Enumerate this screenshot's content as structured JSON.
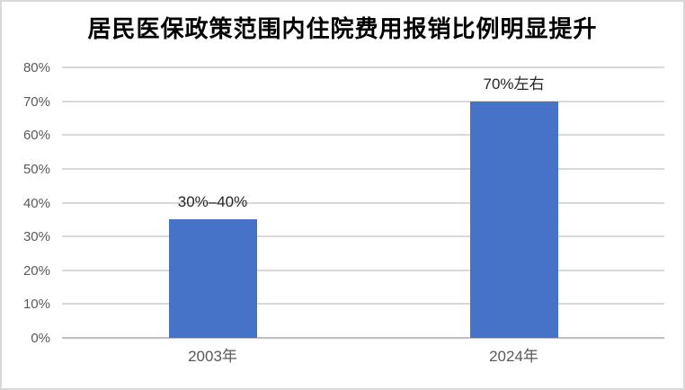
{
  "frame": {
    "background_color": "#ffffff",
    "border_color": "#d9d9d9"
  },
  "chart_data": {
    "type": "bar",
    "title": "居民医保政策范围内住院费用报销比例明显提升",
    "categories": [
      "2003年",
      "2024年"
    ],
    "values": [
      35,
      70
    ],
    "data_labels": [
      "30%–40%",
      "70%左右"
    ],
    "xlabel": "",
    "ylabel": "",
    "ylim": [
      0,
      80
    ],
    "yticks": [
      0,
      10,
      20,
      30,
      40,
      50,
      60,
      70,
      80
    ],
    "ytick_labels": [
      "0%",
      "10%",
      "20%",
      "30%",
      "40%",
      "50%",
      "60%",
      "70%",
      "80%"
    ],
    "grid": "horizontal",
    "legend": "none",
    "bar_color": "#4673C8",
    "gridline_color": "#d9d9d9",
    "axis_line_color": "#c0c0c0",
    "tick_label_color": "#595959",
    "data_label_color": "#262626",
    "title_color": "#000000"
  }
}
